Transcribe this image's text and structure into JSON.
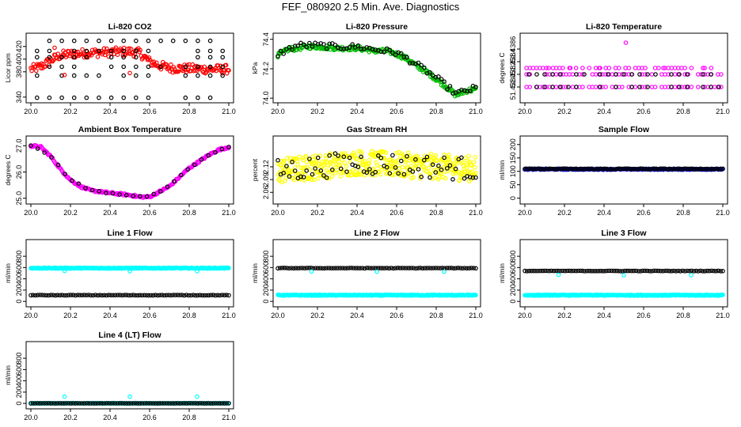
{
  "page_title": "FEF_080920  2.5 Min. Ave. Diagnostics",
  "chart_data": [
    {
      "id": "co2",
      "type": "scatter",
      "title": "Li-820 CO2",
      "ylabel": "Licor ppm",
      "xlim": [
        0.0,
        1.0
      ],
      "ylim": [
        336,
        436
      ],
      "xticks": [
        "20.0",
        "20.2",
        "20.4",
        "20.6",
        "20.8",
        "21.0"
      ],
      "yticks": [
        {
          "v": 340,
          "label": "340"
        },
        {
          "v": 380,
          "label": "380"
        },
        {
          "v": 400,
          "label": "400"
        },
        {
          "v": 420,
          "label": "420"
        }
      ],
      "series": [
        {
          "color": "#ff0000",
          "style": "band",
          "points": [
            [
              0.0,
              384
            ],
            [
              0.05,
              388
            ],
            [
              0.1,
              398
            ],
            [
              0.15,
              406
            ],
            [
              0.2,
              408
            ],
            [
              0.3,
              410
            ],
            [
              0.4,
              411
            ],
            [
              0.5,
              412
            ],
            [
              0.55,
              410
            ],
            [
              0.6,
              396
            ],
            [
              0.65,
              390
            ],
            [
              0.7,
              386
            ],
            [
              0.8,
              385
            ],
            [
              0.9,
              384
            ],
            [
              1.0,
              384
            ]
          ],
          "spread": 7
        },
        {
          "color": "#000000",
          "style": "rows",
          "rows": [
            429,
            413,
            403,
            388,
            374,
            339
          ],
          "count": 16
        },
        {
          "color": "#ff0000",
          "style": "points",
          "points": [
            [
              0.17,
              375
            ],
            [
              0.5,
              378
            ],
            [
              0.12,
              418
            ]
          ]
        }
      ]
    },
    {
      "id": "pressure",
      "type": "scatter",
      "title": "Li-820 Pressure",
      "ylabel": "kPa",
      "xlim": [
        0.0,
        1.0
      ],
      "ylim": [
        73.99,
        74.42
      ],
      "xticks": [
        "20.0",
        "20.2",
        "20.4",
        "20.6",
        "20.8",
        "21.0"
      ],
      "yticks": [
        {
          "v": 74.0,
          "label": "74.0"
        },
        {
          "v": 74.2,
          "label": "74.2"
        },
        {
          "v": 74.4,
          "label": "74.4"
        }
      ],
      "series": [
        {
          "color": "#00bb00",
          "style": "band",
          "points": [
            [
              0.0,
              74.29
            ],
            [
              0.05,
              74.33
            ],
            [
              0.1,
              74.34
            ],
            [
              0.15,
              74.35
            ],
            [
              0.2,
              74.35
            ],
            [
              0.3,
              74.34
            ],
            [
              0.4,
              74.34
            ],
            [
              0.5,
              74.32
            ],
            [
              0.55,
              74.32
            ],
            [
              0.6,
              74.3
            ],
            [
              0.65,
              74.27
            ],
            [
              0.7,
              74.22
            ],
            [
              0.75,
              74.18
            ],
            [
              0.8,
              74.13
            ],
            [
              0.85,
              74.08
            ],
            [
              0.9,
              74.02
            ],
            [
              0.95,
              74.05
            ],
            [
              1.0,
              74.06
            ]
          ],
          "spread": 0.015
        },
        {
          "color": "#000000",
          "style": "band",
          "points": [
            [
              0.0,
              74.3
            ],
            [
              0.1,
              74.36
            ],
            [
              0.2,
              74.36
            ],
            [
              0.3,
              74.35
            ],
            [
              0.4,
              74.35
            ],
            [
              0.5,
              74.33
            ],
            [
              0.6,
              74.31
            ],
            [
              0.7,
              74.23
            ],
            [
              0.8,
              74.14
            ],
            [
              0.9,
              74.03
            ],
            [
              1.0,
              74.07
            ]
          ],
          "spread": 0.02,
          "count": 70
        }
      ]
    },
    {
      "id": "temp",
      "type": "scatter",
      "title": "Li-820 Temperature",
      "ylabel": "degrees C",
      "xlim": [
        0.0,
        1.0
      ],
      "ylim": [
        51.4378,
        51.4388
      ],
      "xticks": [
        "20.0",
        "20.2",
        "20.4",
        "20.6",
        "20.8",
        "21.0"
      ],
      "yticks": [
        {
          "v": 51.438,
          "label": "51.4380"
        },
        {
          "v": 51.4382,
          "label": "51.4382"
        },
        {
          "v": 51.4384,
          "label": "51.4384"
        },
        {
          "v": 51.4386,
          "label": "51.4386"
        }
      ],
      "series": [
        {
          "color": "#ff00ff",
          "style": "rows",
          "rows": [
            51.438,
            51.4382,
            51.4383
          ],
          "count": 60
        },
        {
          "color": "#000000",
          "style": "rows",
          "rows": [
            51.438,
            51.4382
          ],
          "count": 25
        },
        {
          "color": "#ff00ff",
          "style": "points",
          "points": [
            [
              0.51,
              51.4387
            ],
            [
              0.12,
              51.4383
            ],
            [
              0.23,
              51.4383
            ],
            [
              0.38,
              51.4383
            ],
            [
              0.7,
              51.4383
            ],
            [
              0.9,
              51.4383
            ]
          ]
        }
      ]
    },
    {
      "id": "box",
      "type": "scatter",
      "title": "Ambient Box Temperature",
      "ylabel": "degrees C",
      "xlim": [
        0.0,
        1.0
      ],
      "ylim": [
        24.9,
        27.25
      ],
      "xticks": [
        "20.0",
        "20.2",
        "20.4",
        "20.6",
        "20.8",
        "21.0"
      ],
      "yticks": [
        {
          "v": 25.0,
          "label": "25.0"
        },
        {
          "v": 26.0,
          "label": "26.0"
        },
        {
          "v": 27.0,
          "label": "27.0"
        }
      ],
      "series": [
        {
          "color": "#ff00ff",
          "style": "band",
          "points": [
            [
              0.0,
              27.0
            ],
            [
              0.05,
              26.95
            ],
            [
              0.1,
              26.6
            ],
            [
              0.15,
              26.1
            ],
            [
              0.2,
              25.7
            ],
            [
              0.25,
              25.45
            ],
            [
              0.3,
              25.3
            ],
            [
              0.4,
              25.2
            ],
            [
              0.5,
              25.12
            ],
            [
              0.55,
              25.05
            ],
            [
              0.6,
              25.05
            ],
            [
              0.65,
              25.25
            ],
            [
              0.7,
              25.45
            ],
            [
              0.75,
              25.8
            ],
            [
              0.8,
              26.15
            ],
            [
              0.85,
              26.4
            ],
            [
              0.9,
              26.65
            ],
            [
              0.95,
              26.85
            ],
            [
              1.0,
              26.95
            ]
          ],
          "spread": 0.04
        },
        {
          "color": "#000000",
          "style": "band",
          "points": [
            [
              0.0,
              27.0
            ],
            [
              0.1,
              26.6
            ],
            [
              0.2,
              25.7
            ],
            [
              0.3,
              25.3
            ],
            [
              0.4,
              25.2
            ],
            [
              0.5,
              25.12
            ],
            [
              0.6,
              25.05
            ],
            [
              0.7,
              25.45
            ],
            [
              0.8,
              26.15
            ],
            [
              0.9,
              26.65
            ],
            [
              1.0,
              26.95
            ]
          ],
          "spread": 0.03,
          "count": 30
        }
      ]
    },
    {
      "id": "rh",
      "type": "scatter",
      "title": "Gas Stream RH",
      "ylabel": "percent",
      "xlim": [
        0.0,
        1.0
      ],
      "ylim": [
        2.04,
        2.185
      ],
      "xticks": [
        "20.0",
        "20.2",
        "20.4",
        "20.6",
        "20.8",
        "21.0"
      ],
      "yticks": [
        {
          "v": 2.06,
          "label": "2.06"
        },
        {
          "v": 2.09,
          "label": "2.09"
        },
        {
          "v": 2.12,
          "label": "2.12"
        }
      ],
      "series": [
        {
          "color": "#ffff00",
          "style": "band",
          "points": [
            [
              0.0,
              2.11
            ],
            [
              0.2,
              2.12
            ],
            [
              0.4,
              2.13
            ],
            [
              0.6,
              2.125
            ],
            [
              0.8,
              2.12
            ],
            [
              1.0,
              2.115
            ]
          ],
          "spread": 0.03,
          "count": 420
        },
        {
          "color": "#000000",
          "style": "band",
          "points": [
            [
              0.0,
              2.11
            ],
            [
              0.2,
              2.12
            ],
            [
              0.4,
              2.13
            ],
            [
              0.6,
              2.125
            ],
            [
              0.8,
              2.12
            ],
            [
              1.0,
              2.115
            ]
          ],
          "spread": 0.028,
          "count": 70
        }
      ]
    },
    {
      "id": "sample",
      "type": "scatter",
      "title": "Sample Flow",
      "ylabel": "ml/min",
      "xlim": [
        0.0,
        1.0
      ],
      "ylim": [
        -10,
        220
      ],
      "xticks": [
        "20.0",
        "20.2",
        "20.4",
        "20.6",
        "20.8",
        "21.0"
      ],
      "yticks": [
        {
          "v": 0,
          "label": "0"
        },
        {
          "v": 50,
          "label": "50"
        },
        {
          "v": 100,
          "label": "100"
        },
        {
          "v": 150,
          "label": "150"
        },
        {
          "v": 200,
          "label": "200"
        }
      ],
      "series": [
        {
          "color": "#0000cc",
          "style": "band",
          "points": [
            [
              0.0,
              108
            ],
            [
              1.0,
              108
            ]
          ],
          "spread": 2,
          "count": 220
        },
        {
          "color": "#000000",
          "style": "band",
          "points": [
            [
              0.0,
              109
            ],
            [
              1.0,
              109
            ]
          ],
          "spread": 1.5,
          "count": 90
        }
      ]
    },
    {
      "id": "line1",
      "type": "scatter",
      "title": "Line 1 Flow",
      "ylabel": "ml/min",
      "xlim": [
        0.0,
        1.0
      ],
      "ylim": [
        -40,
        1040
      ],
      "xticks": [
        "20.0",
        "20.2",
        "20.4",
        "20.6",
        "20.8",
        "21.0"
      ],
      "yticks": [
        {
          "v": 0,
          "label": "0"
        },
        {
          "v": 200,
          "label": "200"
        },
        {
          "v": 400,
          "label": "400"
        },
        {
          "v": 600,
          "label": "600"
        },
        {
          "v": 800,
          "label": "800"
        }
      ],
      "series": [
        {
          "color": "#00ffff",
          "style": "band",
          "points": [
            [
              0.0,
              590
            ],
            [
              1.0,
              590
            ]
          ],
          "spread": 8,
          "count": 300
        },
        {
          "color": "#000000",
          "style": "band",
          "points": [
            [
              0.0,
              110
            ],
            [
              1.0,
              110
            ]
          ],
          "spread": 4,
          "count": 90
        },
        {
          "color": "#00ffff",
          "style": "points",
          "points": [
            [
              0.17,
              540
            ],
            [
              0.5,
              535
            ],
            [
              0.84,
              535
            ]
          ]
        }
      ]
    },
    {
      "id": "line2",
      "type": "scatter",
      "title": "Line 2 Flow",
      "ylabel": "ml/min",
      "xlim": [
        0.0,
        1.0
      ],
      "ylim": [
        -40,
        1040
      ],
      "xticks": [
        "20.0",
        "20.2",
        "20.4",
        "20.6",
        "20.8",
        "21.0"
      ],
      "yticks": [
        {
          "v": 0,
          "label": "0"
        },
        {
          "v": 200,
          "label": "200"
        },
        {
          "v": 400,
          "label": "400"
        },
        {
          "v": 600,
          "label": "600"
        },
        {
          "v": 800,
          "label": "800"
        }
      ],
      "series": [
        {
          "color": "#00ffff",
          "style": "band",
          "points": [
            [
              0.0,
              110
            ],
            [
              1.0,
              110
            ]
          ],
          "spread": 8,
          "count": 300
        },
        {
          "color": "#000000",
          "style": "band",
          "points": [
            [
              0.0,
              590
            ],
            [
              1.0,
              590
            ]
          ],
          "spread": 4,
          "count": 90
        },
        {
          "color": "#00ffff",
          "style": "points",
          "points": [
            [
              0.17,
              530
            ],
            [
              0.5,
              525
            ],
            [
              0.84,
              525
            ]
          ]
        }
      ]
    },
    {
      "id": "line3",
      "type": "scatter",
      "title": "Line 3 Flow",
      "ylabel": "ml/min",
      "xlim": [
        0.0,
        1.0
      ],
      "ylim": [
        -40,
        1040
      ],
      "xticks": [
        "20.0",
        "20.2",
        "20.4",
        "20.6",
        "20.8",
        "21.0"
      ],
      "yticks": [
        {
          "v": 0,
          "label": "0"
        },
        {
          "v": 200,
          "label": "200"
        },
        {
          "v": 400,
          "label": "400"
        },
        {
          "v": 600,
          "label": "600"
        },
        {
          "v": 800,
          "label": "800"
        }
      ],
      "series": [
        {
          "color": "#00ffff",
          "style": "band",
          "points": [
            [
              0.0,
              110
            ],
            [
              1.0,
              110
            ]
          ],
          "spread": 8,
          "count": 300
        },
        {
          "color": "#000000",
          "style": "band",
          "points": [
            [
              0.0,
              540
            ],
            [
              1.0,
              540
            ]
          ],
          "spread": 4,
          "count": 90
        },
        {
          "color": "#00ffff",
          "style": "points",
          "points": [
            [
              0.17,
              470
            ],
            [
              0.5,
              465
            ],
            [
              0.84,
              465
            ]
          ]
        }
      ]
    },
    {
      "id": "line4",
      "type": "scatter",
      "title": "Line 4 (LT) Flow",
      "ylabel": "ml/min",
      "xlim": [
        0.0,
        1.0
      ],
      "ylim": [
        -40,
        1040
      ],
      "xticks": [
        "20.0",
        "20.2",
        "20.4",
        "20.6",
        "20.8",
        "21.0"
      ],
      "yticks": [
        {
          "v": 0,
          "label": "0"
        },
        {
          "v": 200,
          "label": "200"
        },
        {
          "v": 400,
          "label": "400"
        },
        {
          "v": 600,
          "label": "600"
        },
        {
          "v": 800,
          "label": "800"
        }
      ],
      "series": [
        {
          "color": "#00ffff",
          "style": "band",
          "points": [
            [
              0.0,
              2
            ],
            [
              1.0,
              2
            ]
          ],
          "spread": 3,
          "count": 200
        },
        {
          "color": "#000000",
          "style": "band",
          "points": [
            [
              0.0,
              2
            ],
            [
              1.0,
              2
            ]
          ],
          "spread": 2,
          "count": 90
        },
        {
          "color": "#00ffff",
          "style": "points",
          "points": [
            [
              0.17,
              120
            ],
            [
              0.5,
              120
            ],
            [
              0.84,
              120
            ]
          ]
        }
      ]
    }
  ]
}
